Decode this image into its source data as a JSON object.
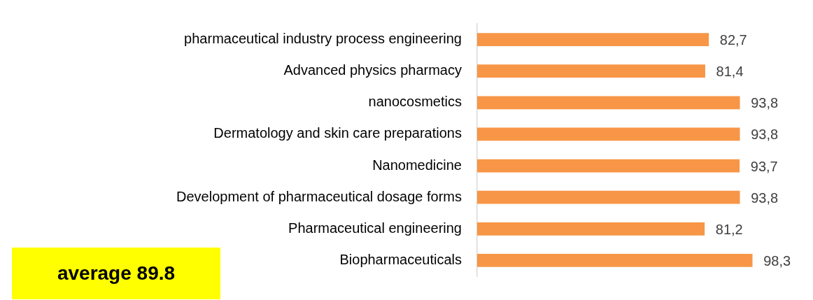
{
  "chart_data": {
    "type": "bar",
    "orientation": "horizontal",
    "categories": [
      "pharmaceutical industry process engineering",
      "Advanced physics pharmacy",
      "nanocosmetics",
      "Dermatology and skin care preparations",
      "Nanomedicine",
      "Development of pharmaceutical dosage forms",
      "Pharmaceutical engineering",
      "Biopharmaceuticals"
    ],
    "values": [
      82.7,
      81.4,
      93.8,
      93.8,
      93.7,
      93.8,
      81.2,
      98.3
    ],
    "value_labels": [
      "82,7",
      "81,4",
      "93,8",
      "93,8",
      "93,7",
      "93,8",
      "81,2",
      "98,3"
    ],
    "color": "#f79646",
    "tick_labels": "y",
    "legend": false,
    "annotations": [
      "average 89.8"
    ]
  }
}
